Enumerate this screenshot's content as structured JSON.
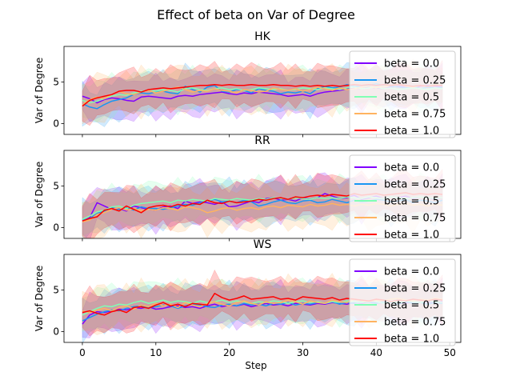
{
  "figure": {
    "suptitle": "Effect of beta on  Var of Degree",
    "xlabel": "Step"
  },
  "legend": {
    "placement": "upper right",
    "labels": [
      "beta = 0.0",
      "beta = 0.25",
      "beta = 0.5",
      "beta = 0.75",
      "beta = 1.0"
    ],
    "colors": [
      "#8000ff",
      "#1996f3",
      "#80ffb4",
      "#ffb360",
      "#ff0000"
    ]
  },
  "chart_data": [
    {
      "type": "line",
      "title": "HK",
      "xlabel": "",
      "ylabel": "Var of Degree",
      "xlim": [
        -2.5,
        51.5
      ],
      "ylim": [
        -1.3,
        9.3
      ],
      "xticks": [
        0,
        10,
        20,
        30,
        40,
        50
      ],
      "yticks": [
        0,
        5
      ],
      "show_xticklabels": false,
      "shaded_band": true,
      "grid": false,
      "x": [
        0,
        1,
        2,
        3,
        4,
        5,
        6,
        7,
        8,
        9,
        10,
        11,
        12,
        13,
        14,
        15,
        16,
        17,
        18,
        19,
        20,
        21,
        22,
        23,
        24,
        25,
        26,
        27,
        28,
        29,
        30,
        31,
        32,
        33,
        34,
        35,
        36,
        37,
        38,
        39,
        40,
        41,
        42,
        43,
        44,
        45,
        46,
        47,
        48,
        49
      ],
      "series": [
        {
          "name": "beta = 0.0",
          "values": [
            3.3,
            3.0,
            2.5,
            2.9,
            3.1,
            3.0,
            2.8,
            2.7,
            3.2,
            3.3,
            3.2,
            3.1,
            3.0,
            3.3,
            3.4,
            3.3,
            3.5,
            3.6,
            3.7,
            3.8,
            3.6,
            3.5,
            3.7,
            3.6,
            3.8,
            3.7,
            3.6,
            3.5,
            3.3,
            3.4,
            3.5,
            3.3,
            3.6,
            3.8,
            3.9,
            4.0,
            4.2,
            4.3,
            4.2,
            4.4,
            4.3,
            4.2,
            4.4,
            4.5,
            4.4,
            4.3,
            4.5,
            4.6,
            4.5,
            4.4
          ]
        },
        {
          "name": "beta = 0.25",
          "values": [
            2.4,
            2.0,
            1.8,
            2.3,
            2.7,
            2.9,
            3.1,
            3.5,
            3.7,
            3.6,
            3.8,
            3.9,
            3.7,
            3.6,
            4.5,
            4.1,
            3.8,
            4.4,
            4.6,
            3.9,
            3.8,
            4.1,
            4.0,
            3.7,
            4.2,
            4.0,
            3.9,
            3.6,
            3.8,
            3.7,
            3.9,
            3.6,
            4.2,
            4.5,
            4.3,
            4.4,
            4.7,
            4.5,
            4.4,
            4.6,
            4.8,
            4.6,
            4.5,
            4.4,
            4.3,
            4.5,
            4.2,
            4.4,
            4.3,
            4.4
          ]
        },
        {
          "name": "beta = 0.5",
          "values": [
            2.8,
            2.5,
            2.7,
            3.0,
            3.3,
            3.5,
            3.4,
            3.7,
            3.9,
            4.0,
            3.9,
            4.1,
            4.0,
            3.8,
            4.2,
            4.3,
            4.1,
            4.0,
            4.2,
            4.3,
            4.1,
            4.2,
            4.0,
            4.1,
            4.3,
            4.2,
            4.1,
            4.2,
            4.0,
            4.1,
            4.3,
            4.2,
            4.1,
            4.3,
            4.2,
            4.1,
            4.3,
            4.4,
            4.2,
            4.3,
            4.4,
            4.2,
            4.3,
            4.1,
            4.2,
            4.3,
            4.2,
            4.1,
            4.3,
            4.2
          ]
        },
        {
          "name": "beta = 0.75",
          "values": [
            2.3,
            2.9,
            3.2,
            3.0,
            3.5,
            3.9,
            3.6,
            3.5,
            3.8,
            4.0,
            3.7,
            3.9,
            4.2,
            4.4,
            4.1,
            3.8,
            4.0,
            3.9,
            4.2,
            4.0,
            3.9,
            3.7,
            4.1,
            4.0,
            3.8,
            3.9,
            4.3,
            4.1,
            4.0,
            4.2,
            3.9,
            4.1,
            4.4,
            4.2,
            4.0,
            4.3,
            4.1,
            4.2,
            4.4,
            4.5,
            4.3,
            4.5,
            4.6,
            4.8,
            4.5,
            4.4,
            4.6,
            4.5,
            4.7,
            4.6
          ]
        },
        {
          "name": "beta = 1.0",
          "values": [
            2.1,
            2.8,
            3.1,
            3.3,
            3.5,
            3.9,
            4.0,
            4.0,
            3.8,
            4.1,
            4.2,
            4.3,
            4.2,
            4.3,
            4.4,
            4.5,
            4.6,
            4.6,
            4.7,
            4.6,
            4.7,
            4.6,
            4.6,
            4.7,
            4.6,
            4.6,
            4.7,
            4.6,
            4.6,
            4.5,
            4.6,
            4.5,
            4.6,
            4.5,
            4.6,
            4.5,
            4.6,
            4.7,
            4.6,
            4.7,
            4.6,
            4.7,
            4.6,
            4.7,
            4.6,
            4.5,
            4.6,
            4.5,
            4.6,
            4.6
          ]
        }
      ]
    },
    {
      "type": "line",
      "title": "RR",
      "xlabel": "",
      "ylabel": "Var of Degree",
      "xlim": [
        -2.5,
        51.5
      ],
      "ylim": [
        -1.3,
        9.3
      ],
      "xticks": [
        0,
        10,
        20,
        30,
        40,
        50
      ],
      "yticks": [
        0,
        5
      ],
      "show_xticklabels": false,
      "shaded_band": true,
      "grid": false,
      "x": [
        0,
        1,
        2,
        3,
        4,
        5,
        6,
        7,
        8,
        9,
        10,
        11,
        12,
        13,
        14,
        15,
        16,
        17,
        18,
        19,
        20,
        21,
        22,
        23,
        24,
        25,
        26,
        27,
        28,
        29,
        30,
        31,
        32,
        33,
        34,
        35,
        36,
        37,
        38,
        39,
        40,
        41,
        42,
        43,
        44,
        45,
        46,
        47,
        48,
        49
      ],
      "series": [
        {
          "name": "beta = 0.0",
          "values": [
            0.8,
            1.2,
            3.0,
            2.6,
            2.2,
            2.3,
            2.0,
            2.6,
            2.4,
            2.2,
            2.1,
            2.5,
            2.6,
            2.3,
            3.2,
            2.9,
            3.1,
            3.0,
            2.8,
            3.1,
            2.5,
            2.6,
            2.9,
            3.2,
            3.0,
            3.5,
            3.6,
            3.3,
            3.4,
            3.2,
            3.6,
            3.4,
            3.6,
            4.1,
            3.8,
            3.5,
            3.6,
            3.9,
            3.4,
            3.6,
            3.8,
            3.5,
            3.7,
            3.6,
            3.8,
            3.5,
            3.7,
            3.6,
            3.4,
            3.6
          ]
        },
        {
          "name": "beta = 0.25",
          "values": [
            0.9,
            1.1,
            1.7,
            2.0,
            2.4,
            2.2,
            2.4,
            2.1,
            2.5,
            2.3,
            2.3,
            2.2,
            2.4,
            2.6,
            2.8,
            2.7,
            3.0,
            3.2,
            3.4,
            3.1,
            3.2,
            3.0,
            3.3,
            3.1,
            2.6,
            2.8,
            3.1,
            3.3,
            3.0,
            2.9,
            3.2,
            3.3,
            3.0,
            3.1,
            3.4,
            3.2,
            3.0,
            3.3,
            3.1,
            3.2,
            3.4,
            3.3,
            3.1,
            3.2,
            3.4,
            3.0,
            3.3,
            3.2,
            3.0,
            3.3
          ]
        },
        {
          "name": "beta = 0.5",
          "values": [
            1.0,
            1.4,
            1.9,
            2.1,
            2.5,
            2.6,
            2.3,
            2.7,
            2.9,
            3.0,
            3.1,
            3.2,
            3.0,
            3.3,
            3.2,
            3.4,
            3.3,
            3.2,
            3.5,
            3.4,
            3.3,
            3.5,
            3.4,
            3.3,
            3.5,
            3.4,
            3.6,
            3.5,
            3.4,
            3.6,
            3.5,
            3.4,
            3.6,
            3.5,
            3.6,
            3.5,
            3.7,
            3.6,
            3.5,
            3.7,
            3.6,
            3.5,
            3.7,
            3.6,
            3.5,
            3.6,
            3.7,
            3.6,
            3.5,
            3.6
          ]
        },
        {
          "name": "beta = 0.75",
          "values": [
            0.7,
            0.9,
            1.6,
            1.8,
            2.2,
            2.4,
            2.1,
            2.3,
            2.0,
            2.2,
            2.1,
            2.4,
            2.3,
            2.1,
            2.5,
            2.4,
            2.2,
            1.8,
            2.0,
            2.3,
            2.4,
            2.1,
            2.3,
            2.4,
            2.2,
            2.5,
            2.6,
            2.4,
            2.7,
            2.6,
            2.5,
            2.8,
            2.6,
            2.7,
            2.9,
            2.7,
            2.8,
            2.6,
            2.8,
            2.7,
            2.9,
            2.8,
            2.6,
            2.8,
            2.9,
            2.7,
            2.8,
            2.6,
            2.8,
            2.7
          ]
        },
        {
          "name": "beta = 1.0",
          "values": [
            0.8,
            1.1,
            1.3,
            2.1,
            2.3,
            2.0,
            2.6,
            2.2,
            1.8,
            2.4,
            2.6,
            2.7,
            2.5,
            2.8,
            2.6,
            2.9,
            2.8,
            3.3,
            3.0,
            2.9,
            3.2,
            3.0,
            3.1,
            3.2,
            3.4,
            3.3,
            3.5,
            3.6,
            3.4,
            3.7,
            3.6,
            3.8,
            3.9,
            3.8,
            4.0,
            3.9,
            3.8,
            4.1,
            3.9,
            4.0,
            4.1,
            3.9,
            4.0,
            4.1,
            4.2,
            4.0,
            4.1,
            4.0,
            4.1,
            4.0
          ]
        }
      ]
    },
    {
      "type": "line",
      "title": "WS",
      "xlabel": "Step",
      "ylabel": "Var of Degree",
      "xlim": [
        -2.5,
        51.5
      ],
      "ylim": [
        -1.3,
        9.3
      ],
      "xticks": [
        0,
        10,
        20,
        30,
        40,
        50
      ],
      "yticks": [
        0,
        5
      ],
      "show_xticklabels": true,
      "shaded_band": true,
      "grid": false,
      "x": [
        0,
        1,
        2,
        3,
        4,
        5,
        6,
        7,
        8,
        9,
        10,
        11,
        12,
        13,
        14,
        15,
        16,
        17,
        18,
        19,
        20,
        21,
        22,
        23,
        24,
        25,
        26,
        27,
        28,
        29,
        30,
        31,
        32,
        33,
        34,
        35,
        36,
        37,
        38,
        39,
        40,
        41,
        42,
        43,
        44,
        45,
        46,
        47,
        48,
        49
      ],
      "series": [
        {
          "name": "beta = 0.0",
          "values": [
            0.9,
            2.0,
            2.4,
            2.3,
            2.5,
            2.7,
            2.6,
            2.9,
            2.8,
            3.0,
            2.7,
            2.8,
            3.0,
            3.1,
            2.9,
            3.0,
            2.8,
            3.1,
            3.3,
            3.0,
            3.2,
            3.1,
            3.3,
            3.0,
            3.2,
            3.4,
            3.2,
            3.3,
            3.1,
            3.4,
            3.3,
            3.2,
            3.4,
            3.3,
            3.5,
            3.4,
            3.3,
            3.5,
            3.4,
            3.6,
            3.5,
            3.4,
            3.6,
            3.5,
            3.4,
            3.6,
            3.5,
            3.6,
            3.5,
            3.6
          ]
        },
        {
          "name": "beta = 0.25",
          "values": [
            1.3,
            1.7,
            2.1,
            2.4,
            2.6,
            2.5,
            2.8,
            3.0,
            3.1,
            2.9,
            3.0,
            3.2,
            3.1,
            2.8,
            3.1,
            3.3,
            3.2,
            3.0,
            2.9,
            3.2,
            3.3,
            3.1,
            3.4,
            3.2,
            3.3,
            3.1,
            3.4,
            3.3,
            3.5,
            3.2,
            3.4,
            3.3,
            3.5,
            3.4,
            3.6,
            3.3,
            3.5,
            3.4,
            3.6,
            3.5,
            3.4,
            3.6,
            3.5,
            3.3,
            3.6,
            3.4,
            3.5,
            3.3,
            3.5,
            3.4
          ]
        },
        {
          "name": "beta = 0.5",
          "values": [
            2.0,
            2.4,
            2.8,
            3.1,
            3.0,
            3.3,
            3.2,
            3.5,
            3.7,
            3.4,
            3.6,
            3.8,
            3.5,
            3.7,
            3.6,
            3.4,
            3.7,
            3.5,
            3.6,
            3.8,
            3.5,
            3.7,
            3.6,
            3.4,
            3.6,
            3.5,
            3.7,
            3.6,
            3.4,
            3.6,
            3.7,
            3.5,
            3.6,
            3.4,
            3.6,
            3.5,
            3.7,
            3.6,
            3.5,
            3.7,
            3.6,
            3.4,
            3.6,
            3.5,
            3.7,
            3.6,
            3.5,
            3.7,
            3.6,
            3.5
          ]
        },
        {
          "name": "beta = 0.75",
          "values": [
            2.5,
            2.3,
            2.6,
            2.8,
            2.5,
            2.9,
            3.1,
            2.7,
            3.2,
            3.0,
            3.4,
            3.1,
            3.3,
            2.9,
            3.5,
            3.2,
            3.0,
            3.4,
            3.6,
            3.3,
            3.1,
            3.5,
            3.7,
            3.4,
            3.2,
            3.6,
            3.4,
            3.5,
            3.8,
            3.6,
            3.3,
            3.7,
            3.5,
            3.4,
            3.8,
            3.6,
            3.5,
            3.9,
            3.7,
            3.6,
            3.8,
            3.7,
            3.9,
            4.0,
            3.8,
            3.7,
            3.9,
            3.8,
            4.0,
            3.9
          ]
        },
        {
          "name": "beta = 1.0",
          "values": [
            2.3,
            2.5,
            2.2,
            2.0,
            2.4,
            2.6,
            2.3,
            2.9,
            3.0,
            2.8,
            3.2,
            3.5,
            3.1,
            3.3,
            3.0,
            3.4,
            3.3,
            3.2,
            4.6,
            4.1,
            3.8,
            4.0,
            4.3,
            3.9,
            4.0,
            4.1,
            4.2,
            3.9,
            4.0,
            3.8,
            4.2,
            4.1,
            4.0,
            3.9,
            4.1,
            3.8,
            4.0,
            3.9,
            3.8,
            3.7,
            3.9,
            3.8,
            3.6,
            3.8,
            3.7,
            3.9,
            3.8,
            3.7,
            3.9,
            3.8
          ]
        }
      ]
    }
  ]
}
